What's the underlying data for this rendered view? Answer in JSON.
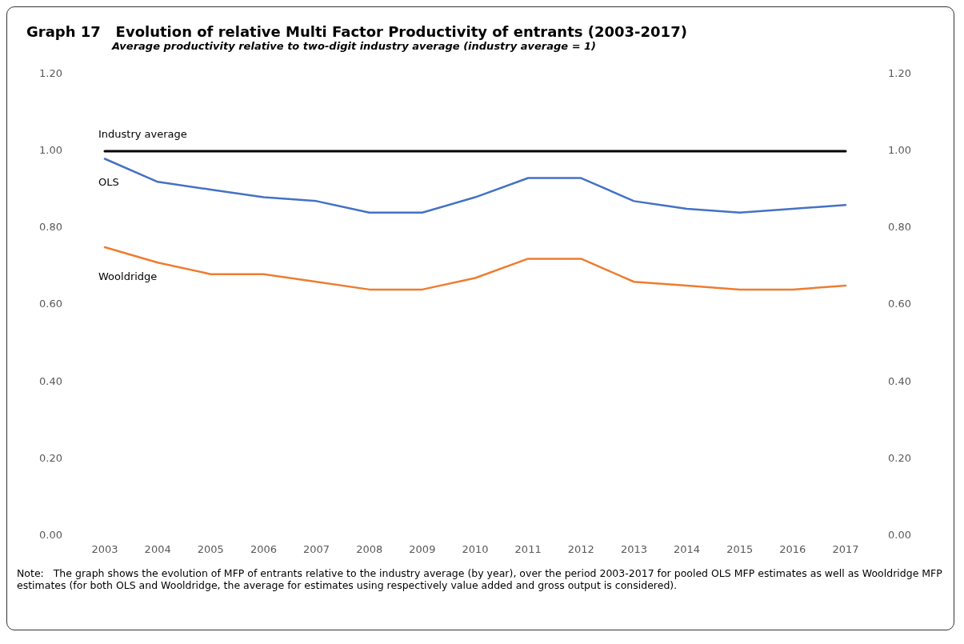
{
  "chart_data": {
    "type": "line",
    "title": "Graph 17   Evolution of relative Multi Factor Productivity of entrants (2003-2017)",
    "subtitle": "Average productivity relative to two-digit industry average (industry average = 1)",
    "categories": [
      "2003",
      "2004",
      "2005",
      "2006",
      "2007",
      "2008",
      "2009",
      "2010",
      "2011",
      "2012",
      "2013",
      "2014",
      "2015",
      "2016",
      "2017"
    ],
    "series": [
      {
        "name": "Industry average",
        "color": "#000000",
        "values": [
          1,
          1,
          1,
          1,
          1,
          1,
          1,
          1,
          1,
          1,
          1,
          1,
          1,
          1,
          1
        ]
      },
      {
        "name": "OLS",
        "color": "#4472c4",
        "values": [
          0.98,
          0.92,
          0.9,
          0.88,
          0.87,
          0.84,
          0.84,
          0.88,
          0.93,
          0.93,
          0.87,
          0.85,
          0.84,
          0.85,
          0.86
        ]
      },
      {
        "name": "Wooldridge",
        "color": "#ed7d31",
        "values": [
          0.75,
          0.71,
          0.68,
          0.68,
          0.66,
          0.64,
          0.64,
          0.67,
          0.72,
          0.72,
          0.66,
          0.65,
          0.64,
          0.64,
          0.65
        ]
      }
    ],
    "ylim": [
      0,
      1.2
    ],
    "yticks": [
      {
        "value": 0,
        "label": "0.00"
      },
      {
        "value": 0.2,
        "label": "0.20"
      },
      {
        "value": 0.4,
        "label": "0.40"
      },
      {
        "value": 0.6,
        "label": "0.60"
      },
      {
        "value": 0.8,
        "label": "0.80"
      },
      {
        "value": 1,
        "label": "1.00"
      },
      {
        "value": 1.2,
        "label": "1.20"
      }
    ],
    "y2lim": [
      0,
      1.2
    ],
    "y2ticks": [
      {
        "value": 0,
        "label": "0.00"
      },
      {
        "value": 0.2,
        "label": "0.20"
      },
      {
        "value": 0.4,
        "label": "0.40"
      },
      {
        "value": 0.6,
        "label": "0.60"
      },
      {
        "value": 0.8,
        "label": "0.80"
      },
      {
        "value": 1,
        "label": "1.00"
      },
      {
        "value": 1.2,
        "label": "1.20"
      }
    ],
    "grid": false,
    "legend": false,
    "marker": "none",
    "line_style": "solid",
    "annotations": [
      "Note:   The graph shows the evolution of MFP of entrants relative to the industry average (by year), over the period 2003-2017 for pooled OLS MFP estimates as well as Wooldridge MFP estimates (for both OLS and Wooldridge, the average for estimates using respectively value added and gross output is considered)."
    ]
  }
}
